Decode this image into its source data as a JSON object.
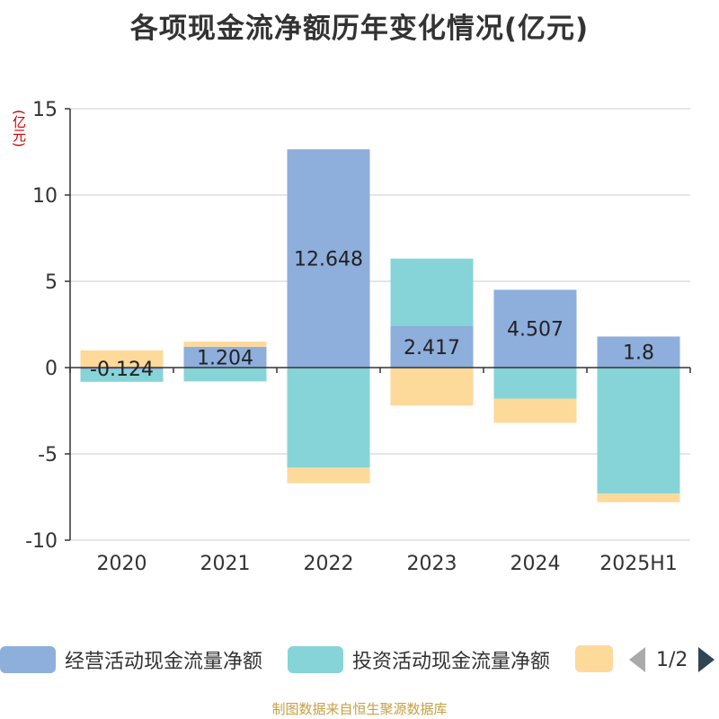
{
  "title": "各项现金流净额历年变化情况(亿元)",
  "unit_label": "(亿元)",
  "footer": "制图数据来自恒生聚源数据库",
  "legend": {
    "items": [
      {
        "label": "经营活动现金流量净额",
        "color": "#8eaedc"
      },
      {
        "label": "投资活动现金流量净额",
        "color": "#86d4d8"
      },
      {
        "label": "",
        "color": "#fdd99a"
      }
    ],
    "page_text": "1/2"
  },
  "chart_data": {
    "type": "bar",
    "stacked": true,
    "categories": [
      "2020",
      "2021",
      "2022",
      "2023",
      "2024",
      "2025H1"
    ],
    "ylim": [
      -10,
      15
    ],
    "yticks": [
      15,
      10,
      5,
      0,
      -5,
      -10
    ],
    "grid": true,
    "series": [
      {
        "name": "经营活动现金流量净额",
        "color": "#8eaedc",
        "values": [
          -0.124,
          1.204,
          12.648,
          2.417,
          4.507,
          1.8
        ],
        "labels": [
          "-0.124",
          "1.204",
          "12.648",
          "2.417",
          "4.507",
          "1.8"
        ]
      },
      {
        "name": "投资活动现金流量净额",
        "color": "#86d4d8",
        "values": [
          -0.7,
          -0.8,
          -5.8,
          3.9,
          -1.8,
          -7.3
        ]
      },
      {
        "color": "#fdd99a",
        "values": [
          1.0,
          0.3,
          -0.9,
          -2.2,
          -1.4,
          -0.5
        ]
      }
    ]
  }
}
